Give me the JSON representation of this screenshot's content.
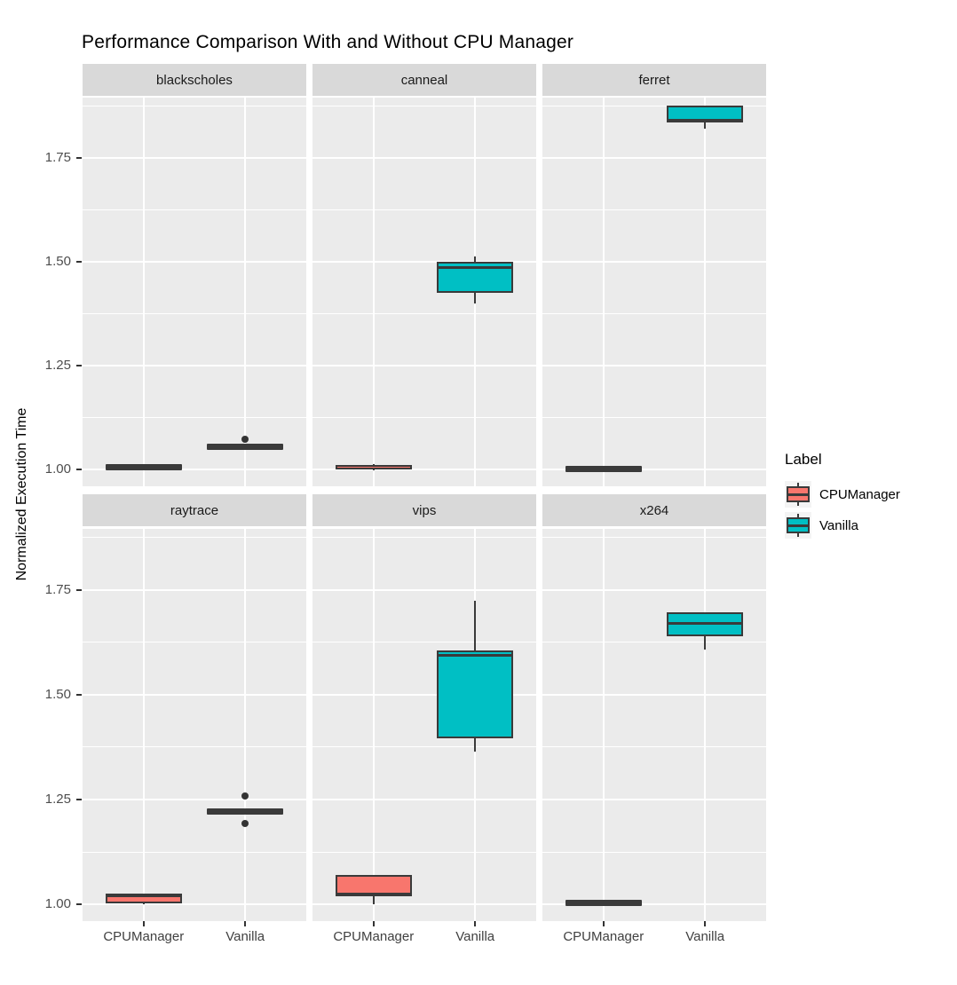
{
  "chart_data": {
    "type": "boxplot",
    "title": "Performance Comparison With and Without CPU Manager",
    "ylabel": "Normalized Execution Time",
    "categories": [
      "CPUManager",
      "Vanilla"
    ],
    "y_tick_labels": [
      "1.00",
      "1.25",
      "1.50",
      "1.75"
    ],
    "y_tick_values": [
      1.0,
      1.25,
      1.5,
      1.75
    ],
    "y_minor_tick_values": [
      1.125,
      1.375,
      1.625,
      1.875
    ],
    "ylim": [
      0.96,
      1.895
    ],
    "grid": true,
    "legend": {
      "title": "Label",
      "position": "right",
      "entries": [
        {
          "label": "CPUManager",
          "color": "#F8766D"
        },
        {
          "label": "Vanilla",
          "color": "#00BFC4"
        }
      ]
    },
    "colors": {
      "cpumanager_fill": "#F8766D",
      "vanilla_fill": "#00BFC4",
      "box_stroke": "#3A3A3A",
      "panel_bg": "#EBEBEB",
      "strip_bg": "#D9D9D9",
      "gridline": "#FFFFFF",
      "tick_text": "#4D4D4D"
    },
    "facets": [
      {
        "name": "blackscholes",
        "boxes": [
          {
            "group": "CPUManager",
            "low": 1.002,
            "q1": 1.002,
            "median": 1.005,
            "q3": 1.009,
            "high": 1.009,
            "outliers": []
          },
          {
            "group": "Vanilla",
            "low": 1.052,
            "q1": 1.052,
            "median": 1.055,
            "q3": 1.059,
            "high": 1.059,
            "outliers": [
              1.073
            ]
          }
        ]
      },
      {
        "name": "canneal",
        "boxes": [
          {
            "group": "CPUManager",
            "low": 0.999,
            "q1": 1.0,
            "median": 1.005,
            "q3": 1.012,
            "high": 1.013,
            "outliers": []
          },
          {
            "group": "Vanilla",
            "low": 1.4,
            "q1": 1.425,
            "median": 1.487,
            "q3": 1.5,
            "high": 1.513,
            "outliers": []
          }
        ]
      },
      {
        "name": "ferret",
        "boxes": [
          {
            "group": "CPUManager",
            "low": 1.0,
            "q1": 1.0,
            "median": 1.002,
            "q3": 1.005,
            "high": 1.005,
            "outliers": []
          },
          {
            "group": "Vanilla",
            "low": 1.82,
            "q1": 1.835,
            "median": 1.84,
            "q3": 1.875,
            "high": 1.876,
            "outliers": []
          }
        ]
      },
      {
        "name": "raytrace",
        "boxes": [
          {
            "group": "CPUManager",
            "low": 1.0,
            "q1": 1.002,
            "median": 1.02,
            "q3": 1.025,
            "high": 1.025,
            "outliers": []
          },
          {
            "group": "Vanilla",
            "low": 1.217,
            "q1": 1.217,
            "median": 1.22,
            "q3": 1.224,
            "high": 1.224,
            "outliers": [
              1.258,
              1.192
            ]
          }
        ]
      },
      {
        "name": "vips",
        "boxes": [
          {
            "group": "CPUManager",
            "low": 1.0,
            "q1": 1.02,
            "median": 1.025,
            "q3": 1.07,
            "high": 1.07,
            "outliers": []
          },
          {
            "group": "Vanilla",
            "low": 1.365,
            "q1": 1.395,
            "median": 1.593,
            "q3": 1.605,
            "high": 1.723,
            "outliers": []
          }
        ]
      },
      {
        "name": "x264",
        "boxes": [
          {
            "group": "CPUManager",
            "low": 1.0,
            "q1": 1.0,
            "median": 1.004,
            "q3": 1.008,
            "high": 1.008,
            "outliers": []
          },
          {
            "group": "Vanilla",
            "low": 1.608,
            "q1": 1.64,
            "median": 1.669,
            "q3": 1.697,
            "high": 1.697,
            "outliers": []
          }
        ]
      }
    ]
  }
}
